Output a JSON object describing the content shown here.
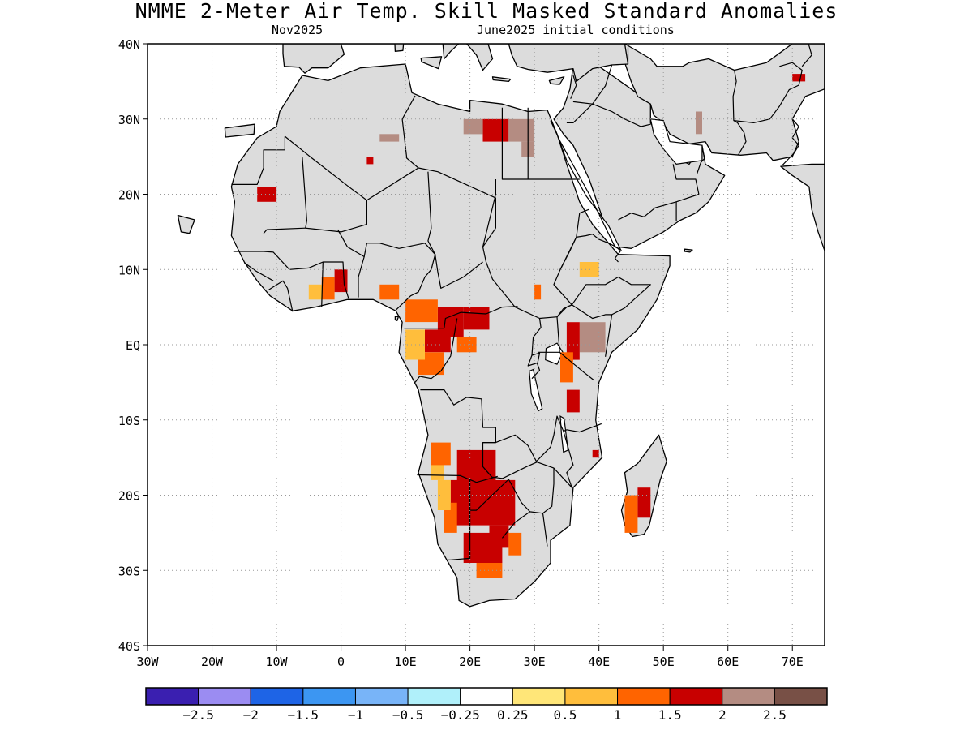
{
  "title": "NMME 2-Meter Air Temp. Skill Masked Standard Anomalies",
  "subtitle_left": "Nov2025",
  "subtitle_right": "June2025 initial conditions",
  "map": {
    "lon_range": [
      -30,
      75
    ],
    "lat_range": [
      -40,
      40
    ],
    "lon_ticks": [
      {
        "value": -30,
        "label": "30W"
      },
      {
        "value": -20,
        "label": "20W"
      },
      {
        "value": -10,
        "label": "10W"
      },
      {
        "value": 0,
        "label": "0"
      },
      {
        "value": 10,
        "label": "10E"
      },
      {
        "value": 20,
        "label": "20E"
      },
      {
        "value": 30,
        "label": "30E"
      },
      {
        "value": 40,
        "label": "40E"
      },
      {
        "value": 50,
        "label": "50E"
      },
      {
        "value": 60,
        "label": "60E"
      },
      {
        "value": 70,
        "label": "70E"
      }
    ],
    "lat_ticks": [
      {
        "value": 40,
        "label": "40N"
      },
      {
        "value": 30,
        "label": "30N"
      },
      {
        "value": 20,
        "label": "20N"
      },
      {
        "value": 10,
        "label": "10N"
      },
      {
        "value": 0,
        "label": "EQ"
      },
      {
        "value": -10,
        "label": "10S"
      },
      {
        "value": -20,
        "label": "20S"
      },
      {
        "value": -30,
        "label": "30S"
      },
      {
        "value": -40,
        "label": "40S"
      }
    ],
    "land_color": "#dcdcdc",
    "ocean_color": "#ffffff",
    "anomaly_patches": [
      {
        "name": "southern-africa-core",
        "level": 2,
        "cells": [
          [
            18,
            -19,
            6,
            5
          ],
          [
            17,
            -24,
            10,
            6
          ],
          [
            19,
            -29,
            6,
            4
          ],
          [
            23,
            -27,
            3,
            3
          ]
        ]
      },
      {
        "name": "southern-africa-margin",
        "level": 1.5,
        "cells": [
          [
            16,
            -25,
            2,
            4
          ],
          [
            26,
            -28,
            2,
            3
          ],
          [
            21,
            -31,
            4,
            2
          ]
        ]
      },
      {
        "name": "southern-africa-outer",
        "level": 1,
        "cells": [
          [
            15,
            -22,
            2,
            4
          ],
          [
            14,
            -18,
            2,
            3
          ]
        ]
      },
      {
        "name": "angola-coast",
        "level": 1.5,
        "cells": [
          [
            14,
            -16,
            3,
            3
          ]
        ]
      },
      {
        "name": "congo-basin-core",
        "level": 2,
        "cells": [
          [
            15,
            1,
            4,
            4
          ],
          [
            19,
            2,
            4,
            3
          ],
          [
            13,
            -1,
            4,
            3
          ]
        ]
      },
      {
        "name": "congo-basin-margin",
        "level": 1.5,
        "cells": [
          [
            10,
            3,
            5,
            3
          ],
          [
            12,
            -4,
            4,
            3
          ],
          [
            18,
            -1,
            3,
            2
          ]
        ]
      },
      {
        "name": "gabon-coast",
        "level": 1,
        "cells": [
          [
            10,
            -2,
            3,
            4
          ]
        ]
      },
      {
        "name": "west-africa-ghana",
        "level": 2,
        "cells": [
          [
            -1,
            7,
            2,
            3
          ]
        ]
      },
      {
        "name": "west-africa-margin",
        "level": 1.5,
        "cells": [
          [
            -3,
            6,
            2,
            3
          ]
        ]
      },
      {
        "name": "west-africa-outer",
        "level": 1,
        "cells": [
          [
            -5,
            6,
            2,
            2
          ]
        ]
      },
      {
        "name": "nigeria-patch",
        "level": 1.5,
        "cells": [
          [
            6,
            6,
            3,
            2
          ]
        ]
      },
      {
        "name": "east-africa-kenya",
        "level": 2.5,
        "cells": [
          [
            37,
            -1,
            4,
            4
          ]
        ]
      },
      {
        "name": "east-africa-margin",
        "level": 2,
        "cells": [
          [
            35,
            -2,
            2,
            5
          ],
          [
            35,
            -9,
            2,
            3
          ]
        ]
      },
      {
        "name": "east-africa-orange",
        "level": 1.5,
        "cells": [
          [
            34,
            -5,
            2,
            4
          ]
        ]
      },
      {
        "name": "ethiopia-patch",
        "level": 1,
        "cells": [
          [
            37,
            9,
            3,
            2
          ]
        ]
      },
      {
        "name": "libya-egypt-core",
        "level": 2,
        "cells": [
          [
            22,
            27,
            4,
            3
          ]
        ]
      },
      {
        "name": "libya-egypt-brown",
        "level": 2.5,
        "cells": [
          [
            19,
            28,
            3,
            2
          ],
          [
            26,
            27,
            4,
            3
          ],
          [
            28,
            25,
            2,
            2
          ]
        ]
      },
      {
        "name": "algeria-spot",
        "level": 2,
        "cells": [
          [
            4,
            24,
            1,
            1
          ]
        ]
      },
      {
        "name": "algeria-brown",
        "level": 2.5,
        "cells": [
          [
            6,
            27,
            3,
            1
          ]
        ]
      },
      {
        "name": "mauritania-spot",
        "level": 2,
        "cells": [
          [
            -13,
            19,
            3,
            2
          ]
        ]
      },
      {
        "name": "madagascar-core",
        "level": 2,
        "cells": [
          [
            46,
            -23,
            2,
            4
          ]
        ]
      },
      {
        "name": "madagascar-margin",
        "level": 1.5,
        "cells": [
          [
            44,
            -25,
            2,
            5
          ]
        ]
      },
      {
        "name": "iran-spot",
        "level": 2.5,
        "cells": [
          [
            55,
            28,
            1,
            3
          ]
        ]
      },
      {
        "name": "tajik-spot",
        "level": 2,
        "cells": [
          [
            70,
            35,
            2,
            1
          ]
        ]
      },
      {
        "name": "sudan-spot",
        "level": 1.5,
        "cells": [
          [
            30,
            6,
            1,
            2
          ]
        ]
      },
      {
        "name": "tanzania-spot",
        "level": 2,
        "cells": [
          [
            39,
            -15,
            1,
            1
          ]
        ]
      }
    ]
  },
  "colorbar": {
    "colors": [
      "#3a1fb0",
      "#9b8cf2",
      "#1e64e6",
      "#3c96f2",
      "#78b4f8",
      "#b0f0fa",
      "#ffffff",
      "#ffe678",
      "#ffbe3c",
      "#ff6400",
      "#c80000",
      "#b48c82",
      "#785046"
    ],
    "labels": [
      "-2.5",
      "-2",
      "-1.5",
      "-1",
      "-0.5",
      "-0.25",
      "0.25",
      "0.5",
      "1",
      "1.5",
      "2",
      "2.5"
    ],
    "display_labels": [
      "−2.5",
      "−2",
      "−1.5",
      "−1",
      "−0.5",
      "−0.25",
      "0.25",
      "0.5",
      "1",
      "1.5",
      "2",
      "2.5"
    ]
  }
}
